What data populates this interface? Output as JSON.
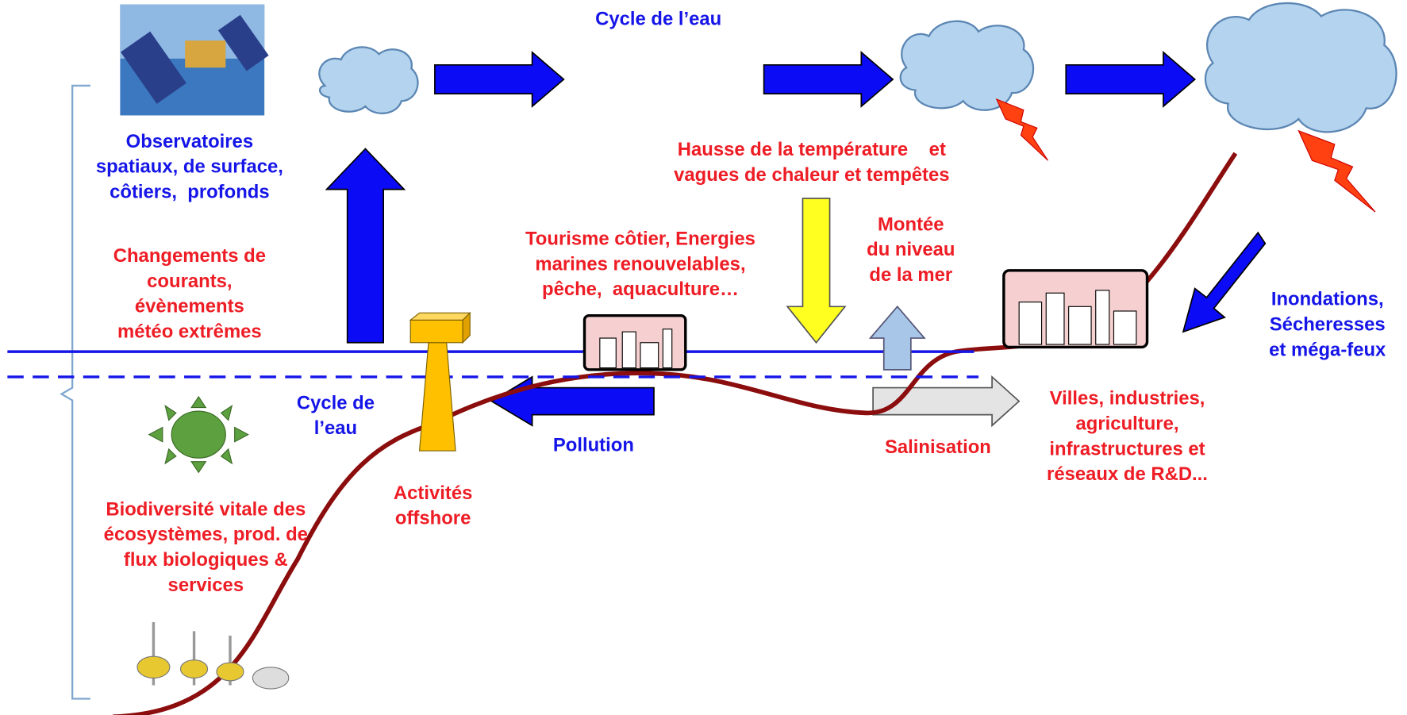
{
  "title": "Cycle de l’eau",
  "labels": {
    "observatories": [
      "Observatoires",
      "spatiaux, de surface,",
      "côtiers,  profonds"
    ],
    "currents": [
      "Changements de",
      "courants,",
      "évènements",
      "météo extrêmes"
    ],
    "temperature": [
      "Hausse de la température    et",
      "vagues de chaleur et tempêtes"
    ],
    "tourism": [
      "Tourisme côtier, Energies",
      "marines renouvelables,",
      "pêche,  aquaculture…"
    ],
    "sea_level": [
      "Montée",
      "du niveau",
      "de la mer"
    ],
    "floods": [
      "Inondations,",
      "Sécheresses",
      "et méga-feux"
    ],
    "water_cycle": [
      "Cycle de",
      "l’eau"
    ],
    "pollution": [
      "Pollution"
    ],
    "salinisation": [
      "Salinisation"
    ],
    "cities": [
      "Villes, industries,",
      "agriculture,",
      "infrastructures et",
      "réseaux de R&D..."
    ],
    "offshore": [
      "Activités",
      "offshore"
    ],
    "biodiversity": [
      "Biodiversité vitale des",
      "écosystèmes, prod. de",
      "flux biologiques &",
      "services"
    ]
  }
}
